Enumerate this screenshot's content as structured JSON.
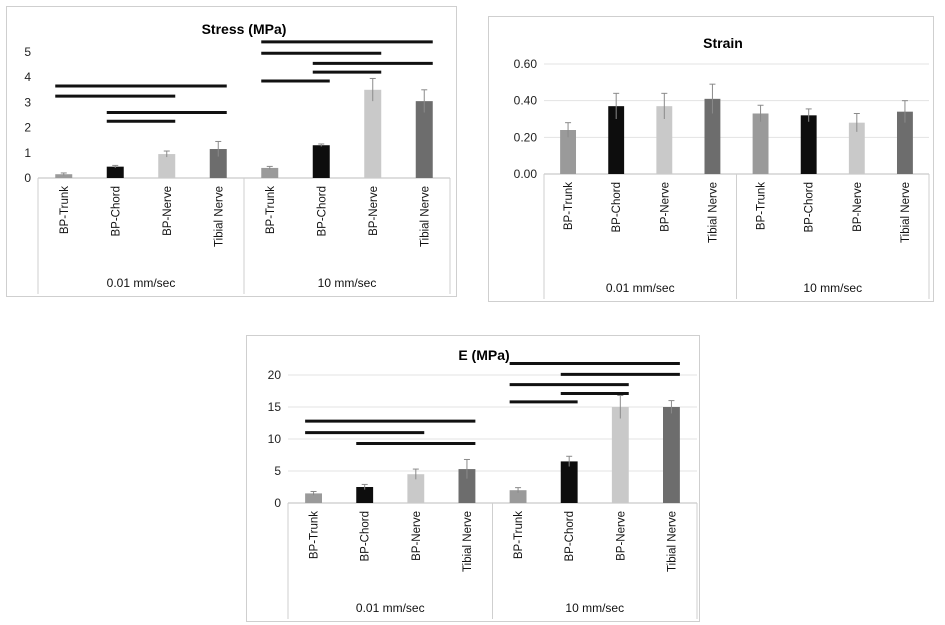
{
  "colors": {
    "BP-Trunk": "#9a9a9a",
    "BP-Chord": "#0d0d0d",
    "BP-Nerve": "#c9c9c9",
    "Tibial Nerve": "#6d6d6d"
  },
  "chart_data": [
    {
      "type": "bar",
      "title": "Stress (MPa)",
      "groups": [
        "0.01 mm/sec",
        "10 mm/sec"
      ],
      "categories": [
        "BP-Trunk",
        "BP-Chord",
        "BP-Nerve",
        "Tibial Nerve"
      ],
      "series": [
        {
          "values": [
            0.15,
            0.45,
            0.95,
            1.15
          ],
          "errors": [
            0.05,
            0.05,
            0.12,
            0.3
          ]
        },
        {
          "values": [
            0.4,
            1.3,
            3.5,
            3.05
          ],
          "errors": [
            0.06,
            0.05,
            0.45,
            0.45
          ]
        }
      ],
      "ylim": [
        0,
        5
      ],
      "yticks": [
        "0",
        "1",
        "2",
        "3",
        "4",
        "5"
      ],
      "grid": false,
      "significance": [
        {
          "group": 0,
          "from": 0,
          "to": 3,
          "level": 3.65
        },
        {
          "group": 0,
          "from": 0,
          "to": 2,
          "level": 3.25
        },
        {
          "group": 0,
          "from": 1,
          "to": 3,
          "level": 2.6
        },
        {
          "group": 0,
          "from": 1,
          "to": 2,
          "level": 2.25
        },
        {
          "group": 1,
          "from": 0,
          "to": 3,
          "level": 5.4
        },
        {
          "group": 1,
          "from": 0,
          "to": 2,
          "level": 4.95
        },
        {
          "group": 1,
          "from": 1,
          "to": 3,
          "level": 4.55
        },
        {
          "group": 1,
          "from": 1,
          "to": 2,
          "level": 4.2
        },
        {
          "group": 1,
          "from": 0,
          "to": 1,
          "level": 3.85
        }
      ]
    },
    {
      "type": "bar",
      "title": "Strain",
      "groups": [
        "0.01 mm/sec",
        "10 mm/sec"
      ],
      "categories": [
        "BP-Trunk",
        "BP-Chord",
        "BP-Nerve",
        "Tibial Nerve"
      ],
      "series": [
        {
          "values": [
            0.24,
            0.37,
            0.37,
            0.41
          ],
          "errors": [
            0.04,
            0.07,
            0.07,
            0.08
          ]
        },
        {
          "values": [
            0.33,
            0.32,
            0.28,
            0.34
          ],
          "errors": [
            0.045,
            0.035,
            0.05,
            0.06
          ]
        }
      ],
      "ylim": [
        0,
        0.6
      ],
      "yticks": [
        "0.00",
        "0.20",
        "0.40",
        "0.60"
      ],
      "grid": true,
      "significance": []
    },
    {
      "type": "bar",
      "title": "E (MPa)",
      "groups": [
        "0.01 mm/sec",
        "10 mm/sec"
      ],
      "categories": [
        "BP-Trunk",
        "BP-Chord",
        "BP-Nerve",
        "Tibial Nerve"
      ],
      "series": [
        {
          "values": [
            1.5,
            2.5,
            4.5,
            5.3
          ],
          "errors": [
            0.3,
            0.4,
            0.8,
            1.5
          ]
        },
        {
          "values": [
            2.0,
            6.5,
            15.0,
            15.0
          ],
          "errors": [
            0.4,
            0.8,
            1.8,
            1.0
          ]
        }
      ],
      "ylim": [
        0,
        20
      ],
      "yticks": [
        "0",
        "5",
        "10",
        "15",
        "20"
      ],
      "grid": true,
      "significance": [
        {
          "group": 0,
          "from": 0,
          "to": 3,
          "level": 12.8
        },
        {
          "group": 0,
          "from": 0,
          "to": 2,
          "level": 11.0
        },
        {
          "group": 0,
          "from": 1,
          "to": 3,
          "level": 9.3
        },
        {
          "group": 1,
          "from": 0,
          "to": 3,
          "level": 21.8
        },
        {
          "group": 1,
          "from": 1,
          "to": 3,
          "level": 20.1
        },
        {
          "group": 1,
          "from": 0,
          "to": 2,
          "level": 18.5
        },
        {
          "group": 1,
          "from": 1,
          "to": 2,
          "level": 17.1
        },
        {
          "group": 1,
          "from": 0,
          "to": 1,
          "level": 15.8
        }
      ]
    }
  ]
}
